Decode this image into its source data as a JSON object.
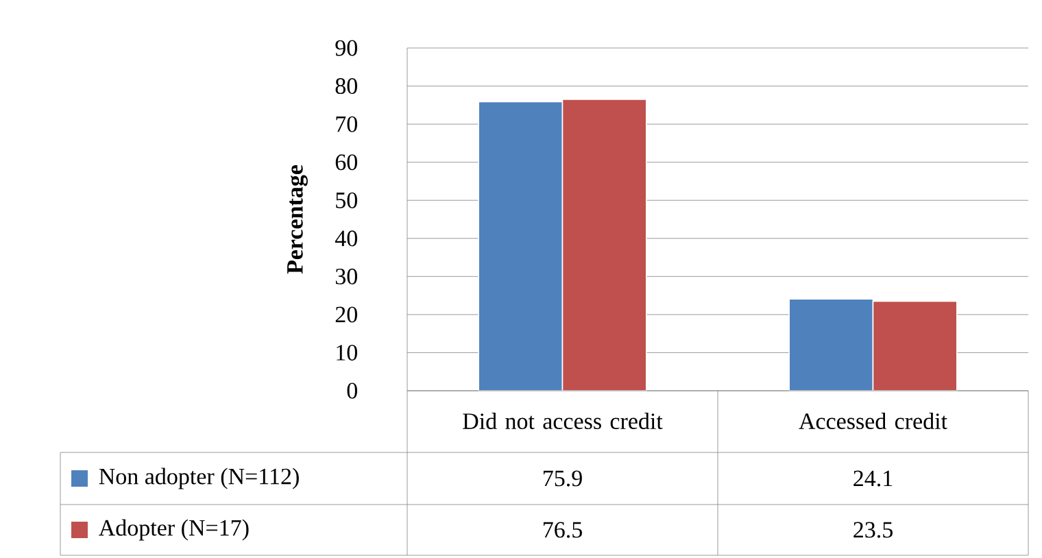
{
  "chart_data": {
    "type": "bar",
    "ylabel": "Percentage",
    "categories": [
      "Did not access credit",
      "Accessed credit"
    ],
    "series": [
      {
        "name": "Non adopter (N=112)",
        "color": "#4f81bd",
        "values": [
          75.9,
          24.1
        ]
      },
      {
        "name": "Adopter (N=17)",
        "color": "#c0504d",
        "values": [
          76.5,
          23.5
        ]
      }
    ],
    "ylim": [
      0,
      90
    ],
    "yticks": [
      0,
      10,
      20,
      30,
      40,
      50,
      60,
      70,
      80,
      90
    ],
    "grid": "y",
    "legend": "bottom left",
    "data_labels": true
  }
}
